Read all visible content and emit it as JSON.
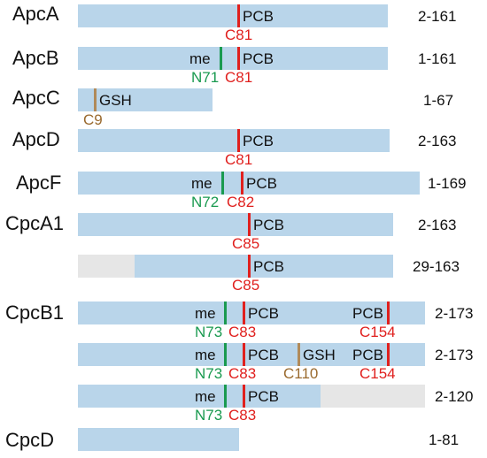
{
  "rows": [
    {
      "label": "ApcA",
      "range": "2-161",
      "segments": [],
      "marks": [
        {
          "site": "C81",
          "type": "red",
          "mod": "PCB"
        }
      ]
    },
    {
      "label": "ApcB",
      "range": "1-161",
      "segments": [],
      "marks": [
        {
          "site": "N71",
          "type": "green",
          "mod": "me"
        },
        {
          "site": "C81",
          "type": "red",
          "mod": "PCB"
        }
      ]
    },
    {
      "label": "ApcC",
      "range": "1-67",
      "segments": [],
      "marks": [
        {
          "site": "C9",
          "type": "brown",
          "mod": "GSH"
        }
      ]
    },
    {
      "label": "ApcD",
      "range": "2-163",
      "segments": [],
      "marks": [
        {
          "site": "C81",
          "type": "red",
          "mod": "PCB"
        }
      ]
    },
    {
      "label": "ApcF",
      "range": "1-169",
      "segments": [],
      "marks": [
        {
          "site": "N72",
          "type": "green",
          "mod": "me"
        },
        {
          "site": "C82",
          "type": "red",
          "mod": "PCB"
        }
      ]
    },
    {
      "label": "CpcA1",
      "range": "2-163",
      "segments": [],
      "marks": [
        {
          "site": "C85",
          "type": "red",
          "mod": "PCB"
        }
      ]
    },
    {
      "label": "",
      "range": "29-163",
      "segments": [
        "missing N-terminus"
      ],
      "marks": [
        {
          "site": "C85",
          "type": "red",
          "mod": "PCB"
        }
      ]
    },
    {
      "label": "CpcB1",
      "range": "2-173",
      "segments": [],
      "marks": [
        {
          "site": "N73",
          "type": "green",
          "mod": "me"
        },
        {
          "site": "C83",
          "type": "red",
          "mod": "PCB"
        },
        {
          "site": "C154",
          "type": "red",
          "mod": "PCB"
        }
      ]
    },
    {
      "label": "",
      "range": "2-173",
      "segments": [],
      "marks": [
        {
          "site": "N73",
          "type": "green",
          "mod": "me"
        },
        {
          "site": "C83",
          "type": "red",
          "mod": "PCB"
        },
        {
          "site": "C110",
          "type": "brown",
          "mod": "GSH"
        },
        {
          "site": "C154",
          "type": "red",
          "mod": "PCB"
        }
      ]
    },
    {
      "label": "",
      "range": "2-120",
      "segments": [
        "missing C-terminus"
      ],
      "marks": [
        {
          "site": "N73",
          "type": "green",
          "mod": "me"
        },
        {
          "site": "C83",
          "type": "red",
          "mod": "PCB"
        }
      ]
    },
    {
      "label": "CpcD",
      "range": "1-81",
      "segments": [],
      "marks": []
    }
  ]
}
